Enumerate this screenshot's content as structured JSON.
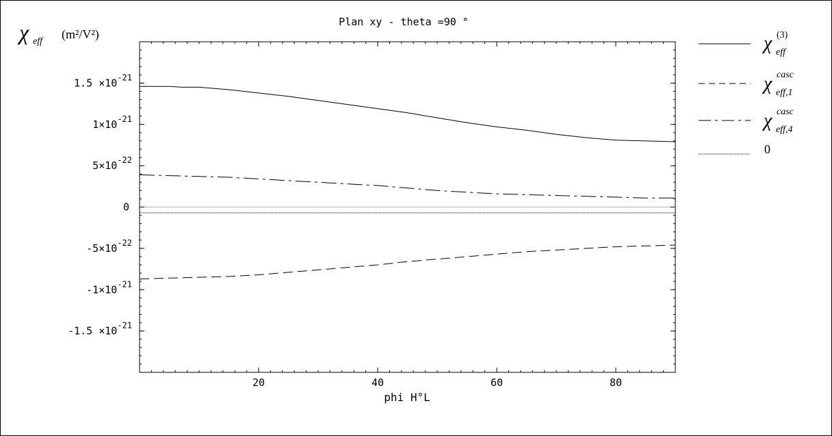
{
  "chart_data": {
    "type": "line",
    "title": "Plan  xy - theta =90 °",
    "ylabel_symbol": "χ",
    "ylabel_sub": "eff",
    "ylabel_unit": "(m²/V²)",
    "xlabel": "phi  H°L",
    "xlim": [
      0,
      90
    ],
    "ylim": [
      -2e-21,
      2e-21
    ],
    "x_ticks": [
      {
        "value": 20,
        "label": "20"
      },
      {
        "value": 40,
        "label": "40"
      },
      {
        "value": 60,
        "label": "60"
      },
      {
        "value": 80,
        "label": "80"
      }
    ],
    "y_ticks": [
      {
        "value": 1.5e-21,
        "mant": "1.5 ×10",
        "exp": "-21"
      },
      {
        "value": 1e-21,
        "mant": "1×10",
        "exp": "-21"
      },
      {
        "value": 5e-22,
        "mant": "5×10",
        "exp": "-22"
      },
      {
        "value": 0,
        "mant": "0",
        "exp": ""
      },
      {
        "value": -5e-22,
        "mant": "-5×10",
        "exp": "-22"
      },
      {
        "value": -1e-21,
        "mant": "-1×10",
        "exp": "-21"
      },
      {
        "value": -1.5e-21,
        "mant": "-1.5 ×10",
        "exp": "-21"
      }
    ],
    "series": [
      {
        "id": "chi3",
        "legend_main": "χ",
        "legend_sub": "eff",
        "legend_sup": "(3)",
        "dash": "",
        "x": [
          0,
          5,
          7,
          10,
          15,
          20,
          25,
          30,
          35,
          40,
          45,
          50,
          55,
          60,
          65,
          70,
          75,
          80,
          85,
          90
        ],
        "y": [
          1.46e-21,
          1.46e-21,
          1.45e-21,
          1.45e-21,
          1.42e-21,
          1.38e-21,
          1.34e-21,
          1.29e-21,
          1.24e-21,
          1.19e-21,
          1.14e-21,
          1.08e-21,
          1.02e-21,
          9.7e-22,
          9.3e-22,
          8.8e-22,
          8.4e-22,
          8.1e-22,
          8e-22,
          7.9e-22
        ]
      },
      {
        "id": "casc1",
        "legend_main": "χ",
        "legend_sub": "eff,1",
        "legend_sup": "casc",
        "dash": "14,7",
        "x": [
          0,
          5,
          10,
          15,
          20,
          25,
          30,
          35,
          40,
          45,
          50,
          55,
          60,
          65,
          70,
          75,
          80,
          85,
          90
        ],
        "y": [
          -8.7e-22,
          -8.6e-22,
          -8.5e-22,
          -8.4e-22,
          -8.2e-22,
          -7.9e-22,
          -7.6e-22,
          -7.3e-22,
          -7e-22,
          -6.6e-22,
          -6.3e-22,
          -6e-22,
          -5.7e-22,
          -5.4e-22,
          -5.2e-22,
          -5e-22,
          -4.8e-22,
          -4.7e-22,
          -4.6e-22
        ]
      },
      {
        "id": "casc4",
        "legend_main": "χ",
        "legend_sub": "eff,4",
        "legend_sup": "casc",
        "dash": "22,6,4,6",
        "x": [
          0,
          5,
          10,
          15,
          20,
          25,
          30,
          35,
          40,
          45,
          50,
          55,
          60,
          65,
          70,
          75,
          80,
          85,
          90
        ],
        "y": [
          3.9e-22,
          3.8e-22,
          3.7e-22,
          3.6e-22,
          3.4e-22,
          3.2e-22,
          3e-22,
          2.8e-22,
          2.6e-22,
          2.3e-22,
          2e-22,
          1.8e-22,
          1.6e-22,
          1.5e-22,
          1.4e-22,
          1.3e-22,
          1.2e-22,
          1.1e-22,
          1.1e-22
        ]
      },
      {
        "id": "zero",
        "legend_label": "0",
        "dash": "1,1",
        "x": [
          0,
          90
        ],
        "y": [
          -7e-23,
          -7e-23
        ]
      }
    ]
  }
}
